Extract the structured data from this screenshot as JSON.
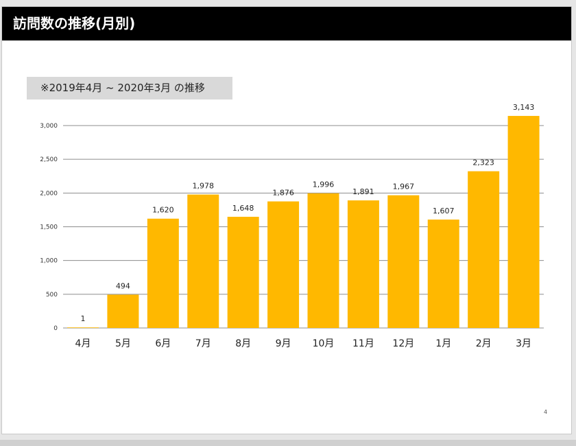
{
  "page": {
    "title": "訪問数の推移(月別)",
    "subtitle": "※2019年4月 ~ 2020年3月 の推移",
    "page_number": "4"
  },
  "colors": {
    "title_bar": "#000000",
    "bar": "#FFB800",
    "subtitle_box": "#d9d9d9"
  },
  "chart_data": {
    "type": "bar",
    "title": "",
    "xlabel": "",
    "ylabel": "",
    "categories": [
      "4月",
      "5月",
      "6月",
      "7月",
      "8月",
      "9月",
      "10月",
      "11月",
      "12月",
      "1月",
      "2月",
      "3月"
    ],
    "values": [
      1,
      494,
      1620,
      1978,
      1648,
      1876,
      1996,
      1891,
      1967,
      1607,
      2323,
      3143
    ],
    "value_labels": [
      "1",
      "494",
      "1,620",
      "1,978",
      "1,648",
      "1,876",
      "1,996",
      "1,891",
      "1,967",
      "1,607",
      "2,323",
      "3,143"
    ],
    "ylim": [
      0,
      3000
    ],
    "yticks": [
      0,
      500,
      1000,
      1500,
      2000,
      2500,
      3000
    ],
    "ytick_labels": [
      "0",
      "500",
      "1,000",
      "1,500",
      "2,000",
      "2,500",
      "3,000"
    ],
    "grid": true,
    "legend": "none"
  }
}
